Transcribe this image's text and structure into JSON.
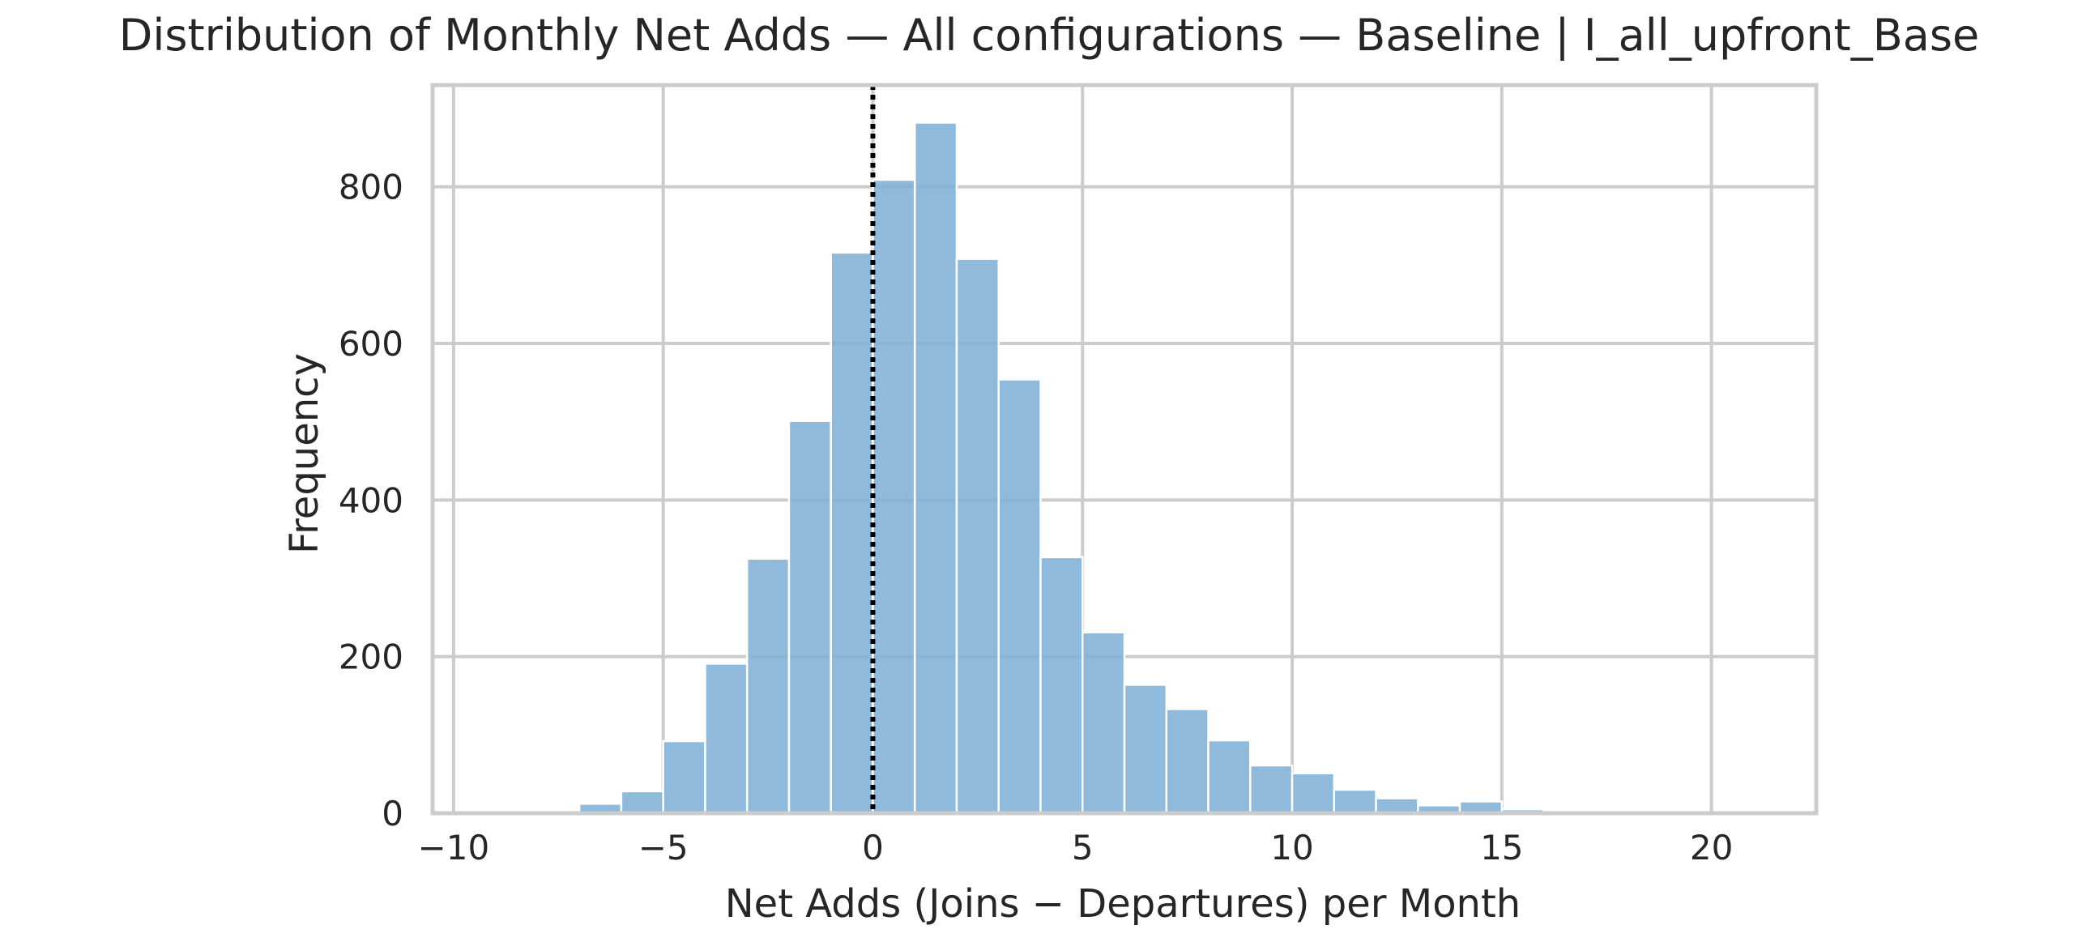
{
  "chart_data": {
    "type": "bar",
    "title": "Distribution of Monthly Net Adds — All configurations — Baseline | I_all_upfront_Base",
    "xlabel": "Net Adds (Joins − Departures) per Month",
    "ylabel": "Frequency",
    "xlim": [
      -10.5,
      22.5
    ],
    "ylim": [
      0,
      930
    ],
    "xticks": [
      -10,
      -5,
      0,
      5,
      10,
      15,
      20
    ],
    "xtick_labels": [
      "−10",
      "−5",
      "0",
      "5",
      "10",
      "15",
      "20"
    ],
    "yticks": [
      0,
      200,
      400,
      600,
      800
    ],
    "ytick_labels": [
      "0",
      "200",
      "400",
      "600",
      "800"
    ],
    "grid": true,
    "reference_line": {
      "x": 0,
      "style": "dotted",
      "color": "#000000"
    },
    "bar_color": "#7fb0d6",
    "bins": [
      {
        "x0": -10,
        "x1": -9,
        "value": 1
      },
      {
        "x0": -9,
        "x1": -8,
        "value": 1
      },
      {
        "x0": -8,
        "x1": -7,
        "value": 3
      },
      {
        "x0": -7,
        "x1": -6,
        "value": 12
      },
      {
        "x0": -6,
        "x1": -5,
        "value": 28
      },
      {
        "x0": -5,
        "x1": -4,
        "value": 92
      },
      {
        "x0": -4,
        "x1": -3,
        "value": 191
      },
      {
        "x0": -3,
        "x1": -2,
        "value": 325
      },
      {
        "x0": -2,
        "x1": -1,
        "value": 501
      },
      {
        "x0": -1,
        "x1": 0,
        "value": 716
      },
      {
        "x0": 0,
        "x1": 1,
        "value": 809
      },
      {
        "x0": 1,
        "x1": 2,
        "value": 882
      },
      {
        "x0": 2,
        "x1": 3,
        "value": 708
      },
      {
        "x0": 3,
        "x1": 4,
        "value": 554
      },
      {
        "x0": 4,
        "x1": 5,
        "value": 327
      },
      {
        "x0": 5,
        "x1": 6,
        "value": 231
      },
      {
        "x0": 6,
        "x1": 7,
        "value": 164
      },
      {
        "x0": 7,
        "x1": 8,
        "value": 133
      },
      {
        "x0": 8,
        "x1": 9,
        "value": 93
      },
      {
        "x0": 9,
        "x1": 10,
        "value": 61
      },
      {
        "x0": 10,
        "x1": 11,
        "value": 51
      },
      {
        "x0": 11,
        "x1": 12,
        "value": 30
      },
      {
        "x0": 12,
        "x1": 13,
        "value": 19
      },
      {
        "x0": 13,
        "x1": 14,
        "value": 10
      },
      {
        "x0": 14,
        "x1": 15,
        "value": 15
      },
      {
        "x0": 15,
        "x1": 16,
        "value": 5
      },
      {
        "x0": 16,
        "x1": 17,
        "value": 3
      },
      {
        "x0": 17,
        "x1": 18,
        "value": 1
      },
      {
        "x0": 18,
        "x1": 19,
        "value": 1
      },
      {
        "x0": 19,
        "x1": 20,
        "value": 1
      },
      {
        "x0": 20,
        "x1": 21,
        "value": 1
      },
      {
        "x0": 21,
        "x1": 22,
        "value": 1
      }
    ]
  }
}
